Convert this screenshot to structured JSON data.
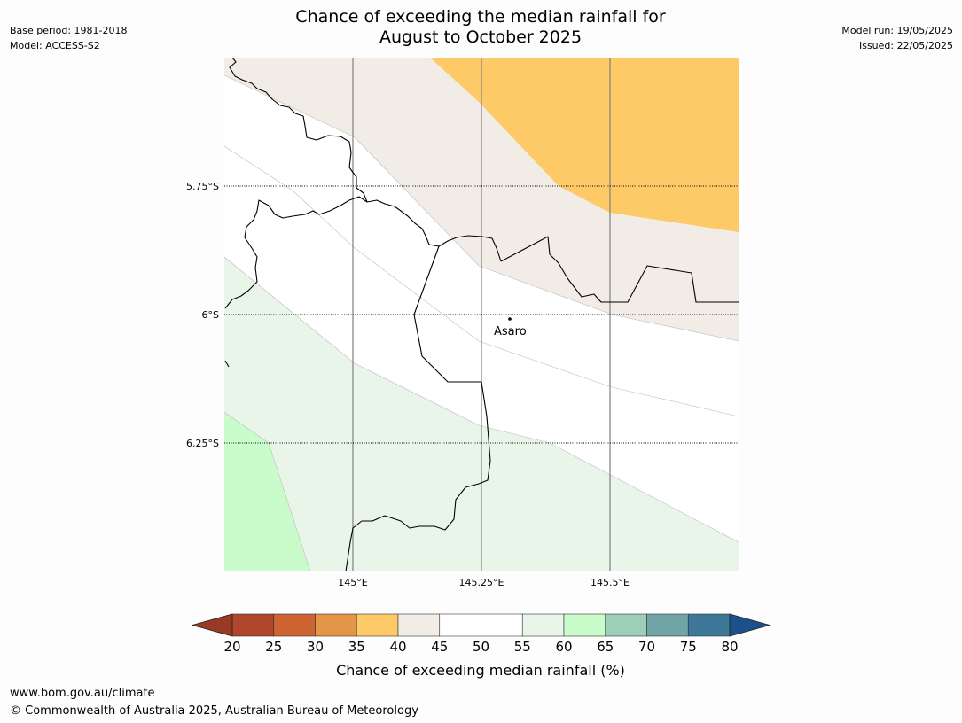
{
  "header": {
    "title_line1": "Chance of exceeding the median rainfall for",
    "title_line2": "August to October 2025",
    "base_period": "Base period: 1981-2018",
    "model": "Model: ACCESS-S2",
    "model_run": "Model run: 19/05/2025",
    "issued": "Issued: 22/05/2025"
  },
  "map": {
    "lat_labels": [
      "5.75°S",
      "6°S",
      "6.25°S"
    ],
    "lon_labels": [
      "145°E",
      "145.25°E",
      "145.5°E"
    ],
    "place": {
      "name": "Asaro"
    },
    "colors": {
      "orange_35_40": "#fdca67",
      "beige_40_45": "#f1ece6",
      "white_45_55": "#ffffff",
      "lightgreen_55_60": "#eaf5ea",
      "green_60_65": "#cafccb"
    }
  },
  "colorbar": {
    "ticks": [
      "20",
      "25",
      "30",
      "35",
      "40",
      "45",
      "50",
      "55",
      "60",
      "65",
      "70",
      "75",
      "80"
    ],
    "colors": [
      "#b0472b",
      "#cc6331",
      "#e39645",
      "#fdca67",
      "#f1ece6",
      "#ffffff",
      "#ffffff",
      "#eaf5ea",
      "#cafccb",
      "#9dcfb8",
      "#6fa5a6",
      "#3f7799"
    ],
    "low_color": "#9a3a25",
    "high_color": "#1b5089",
    "label": "Chance of exceeding median rainfall (%)"
  },
  "footer": {
    "url": "www.bom.gov.au/climate",
    "copyright": "© Commonwealth of Australia 2025, Australian Bureau of Meteorology"
  }
}
